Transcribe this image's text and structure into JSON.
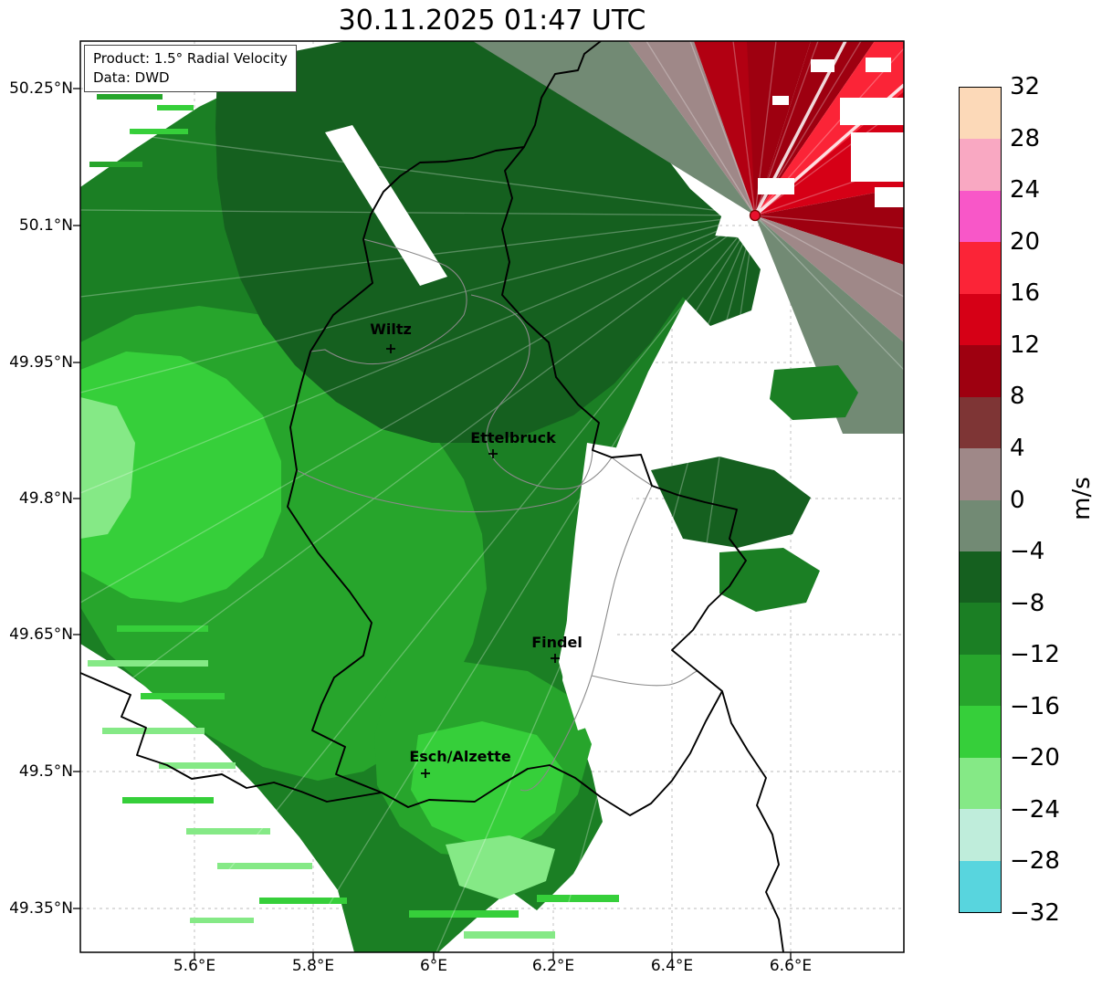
{
  "title": "30.11.2025 01:47 UTC",
  "info_box": {
    "product": "Product: 1.5° Radial Velocity",
    "source": "Data: DWD"
  },
  "axes": {
    "lat_ticks": [
      "50.25°N",
      "50.1°N",
      "49.95°N",
      "49.8°N",
      "49.65°N",
      "49.5°N",
      "49.35°N"
    ],
    "lon_ticks": [
      "5.6°E",
      "5.8°E",
      "6°E",
      "6.2°E",
      "6.4°E",
      "6.6°E"
    ]
  },
  "colorbar": {
    "unit": "m/s",
    "tick_labels": [
      "32",
      "28",
      "24",
      "20",
      "16",
      "12",
      "8",
      "4",
      "0",
      "−4",
      "−8",
      "−12",
      "−16",
      "−20",
      "−24",
      "−28",
      "−32"
    ],
    "band_colors_top_to_bottom": [
      "#fcd9b8",
      "#f9a8c2",
      "#f857c8",
      "#fb2437",
      "#d60016",
      "#9e0010",
      "#7e3535",
      "#9f8888",
      "#728a74",
      "#15601f",
      "#1b7f24",
      "#27a52c",
      "#36cf3a",
      "#85e986",
      "#bfeddb",
      "#58d5de"
    ]
  },
  "cities": [
    {
      "name": "Wiltz"
    },
    {
      "name": "Ettelbruck"
    },
    {
      "name": "Findel"
    },
    {
      "name": "Esch/Alzette"
    }
  ],
  "radar_marker_color": "#e8112d",
  "chart_data": {
    "type": "heatmap",
    "title": "30.11.2025 01:47 UTC",
    "product": "1.5° Radial Velocity",
    "source": "DWD",
    "unit": "m/s",
    "value_range": [
      -32,
      32
    ],
    "colorbar_ticks": [
      32,
      28,
      24,
      20,
      16,
      12,
      8,
      4,
      0,
      -4,
      -8,
      -12,
      -16,
      -20,
      -24,
      -28,
      -32
    ],
    "x_axis": {
      "ticks_deg_e": [
        5.6,
        5.8,
        6.0,
        6.2,
        6.4,
        6.6
      ],
      "range_deg_e": [
        5.41,
        6.79
      ]
    },
    "y_axis": {
      "ticks_deg_n": [
        50.25,
        50.1,
        49.95,
        49.8,
        49.65,
        49.5,
        49.35
      ],
      "range_deg_n": [
        49.3,
        50.3
      ]
    },
    "radar_site": {
      "lon_e": 6.54,
      "lat_n": 50.11
    },
    "cities": [
      {
        "name": "Wiltz",
        "lon_e": 5.93,
        "lat_n": 49.97
      },
      {
        "name": "Ettelbruck",
        "lon_e": 6.1,
        "lat_n": 49.85
      },
      {
        "name": "Findel",
        "lon_e": 6.21,
        "lat_n": 49.63
      },
      {
        "name": "Esch/Alzette",
        "lon_e": 5.99,
        "lat_n": 49.5
      }
    ],
    "field_summary": [
      {
        "region": "southwest and center of map (most of domain)",
        "radial_velocity_ms": [
          -24,
          -4
        ],
        "appearance": "green shades, flow toward radar"
      },
      {
        "region": "northeast corner around and beyond radar site",
        "radial_velocity_ms": [
          4,
          20
        ],
        "appearance": "dark red to bright red, flow away from radar"
      },
      {
        "region": "zero-isodop band NW to SE through radar",
        "radial_velocity_ms": [
          -4,
          4
        ],
        "appearance": "gray-green and gray-mauve"
      },
      {
        "region": "scattered gaps and far southeast",
        "radial_velocity_ms": null,
        "appearance": "white, no data"
      }
    ]
  }
}
